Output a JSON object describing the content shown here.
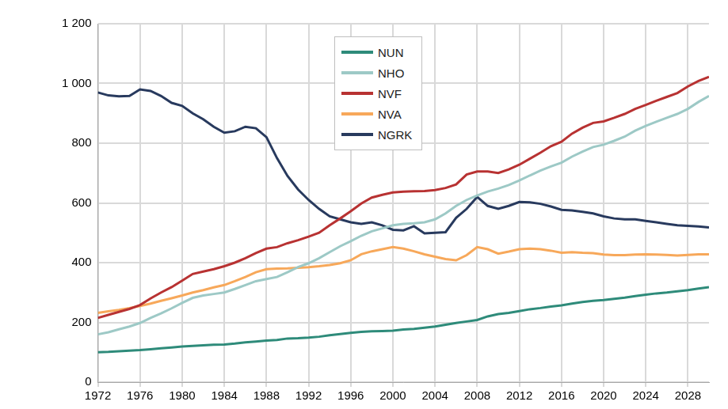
{
  "chart_data": {
    "type": "line",
    "x": [
      1972,
      1973,
      1974,
      1975,
      1976,
      1977,
      1978,
      1979,
      1980,
      1981,
      1982,
      1983,
      1984,
      1985,
      1986,
      1987,
      1988,
      1989,
      1990,
      1991,
      1992,
      1993,
      1994,
      1995,
      1996,
      1997,
      1998,
      1999,
      2000,
      2001,
      2002,
      2003,
      2004,
      2005,
      2006,
      2007,
      2008,
      2009,
      2010,
      2011,
      2012,
      2013,
      2014,
      2015,
      2016,
      2017,
      2018,
      2019,
      2020,
      2021,
      2022,
      2023,
      2024,
      2025,
      2026,
      2027,
      2028,
      2029,
      2030
    ],
    "series": [
      {
        "name": "NUN",
        "color": "#2e8b7a",
        "values": [
          100,
          101,
          103,
          105,
          107,
          110,
          113,
          116,
          119,
          121,
          123,
          125,
          126,
          129,
          133,
          136,
          139,
          141,
          146,
          147,
          149,
          152,
          157,
          161,
          165,
          168,
          170,
          171,
          172,
          176,
          178,
          182,
          186,
          192,
          198,
          203,
          208,
          220,
          228,
          232,
          238,
          244,
          248,
          253,
          257,
          263,
          268,
          272,
          275,
          279,
          283,
          288,
          293,
          297,
          300,
          304,
          308,
          313,
          318
        ]
      },
      {
        "name": "NHO",
        "color": "#9dc9c6",
        "values": [
          160,
          167,
          177,
          186,
          198,
          215,
          230,
          247,
          265,
          282,
          290,
          295,
          300,
          312,
          325,
          338,
          345,
          352,
          368,
          385,
          398,
          415,
          435,
          455,
          472,
          490,
          505,
          515,
          525,
          530,
          532,
          535,
          545,
          565,
          590,
          610,
          625,
          638,
          648,
          660,
          675,
          692,
          708,
          722,
          735,
          755,
          772,
          787,
          795,
          808,
          822,
          842,
          858,
          872,
          885,
          898,
          915,
          938,
          958
        ]
      },
      {
        "name": "NVF",
        "color": "#b83232",
        "values": [
          215,
          225,
          235,
          245,
          258,
          280,
          300,
          318,
          340,
          362,
          370,
          378,
          388,
          400,
          415,
          432,
          447,
          452,
          465,
          475,
          487,
          500,
          525,
          548,
          572,
          598,
          618,
          627,
          635,
          638,
          639,
          640,
          643,
          650,
          662,
          695,
          705,
          705,
          700,
          712,
          728,
          748,
          768,
          790,
          805,
          832,
          852,
          868,
          873,
          885,
          898,
          915,
          928,
          942,
          955,
          968,
          990,
          1008,
          1022
        ]
      },
      {
        "name": "NVA",
        "color": "#f7a85a",
        "values": [
          232,
          237,
          242,
          248,
          255,
          263,
          272,
          281,
          290,
          300,
          308,
          317,
          325,
          338,
          352,
          368,
          378,
          380,
          381,
          383,
          385,
          388,
          392,
          398,
          408,
          428,
          438,
          445,
          452,
          447,
          438,
          428,
          420,
          412,
          408,
          425,
          452,
          445,
          430,
          437,
          445,
          447,
          445,
          440,
          433,
          435,
          433,
          432,
          427,
          425,
          425,
          427,
          428,
          427,
          426,
          424,
          426,
          428,
          428
        ]
      },
      {
        "name": "NGRK",
        "color": "#283a5e",
        "values": [
          970,
          960,
          957,
          958,
          980,
          975,
          958,
          935,
          925,
          900,
          880,
          855,
          835,
          840,
          855,
          850,
          820,
          750,
          690,
          645,
          610,
          580,
          555,
          545,
          535,
          530,
          535,
          525,
          510,
          508,
          522,
          498,
          500,
          502,
          550,
          580,
          620,
          590,
          580,
          590,
          603,
          602,
          597,
          588,
          577,
          575,
          570,
          565,
          555,
          548,
          545,
          545,
          540,
          535,
          530,
          525,
          523,
          521,
          518
        ]
      }
    ],
    "xlim": [
      1972,
      2030
    ],
    "xticks": [
      1972,
      1976,
      1980,
      1984,
      1988,
      1992,
      1996,
      2000,
      2004,
      2008,
      2012,
      2016,
      2020,
      2024,
      2028
    ],
    "ylim": [
      0,
      1200
    ],
    "yticks": [
      0,
      200,
      400,
      600,
      800,
      {
        "value": 1000,
        "label": "1 000"
      },
      {
        "value": 1200,
        "label": "1 200"
      }
    ],
    "grid": true,
    "legend": "top"
  }
}
